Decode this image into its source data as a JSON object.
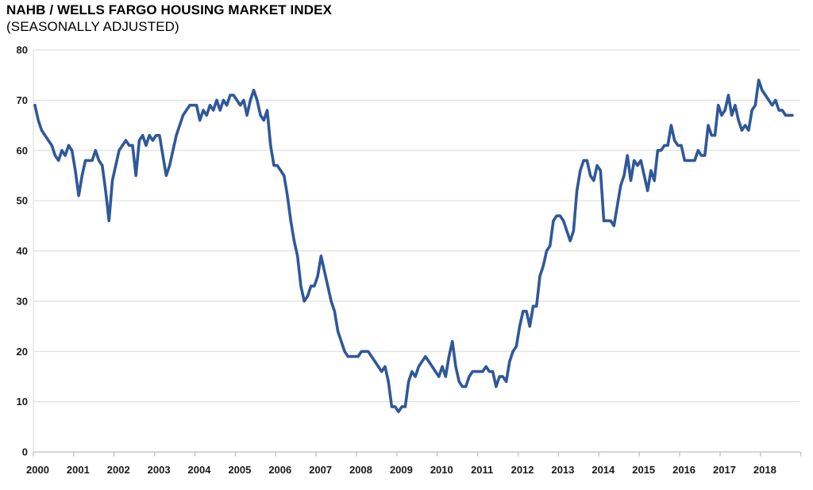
{
  "header": {
    "title": "NAHB / WELLS FARGO HOUSING MARKET INDEX",
    "subtitle": "(SEASONALLY ADJUSTED)"
  },
  "colors": {
    "line": "#2f5899",
    "gridline": "#d9d9d9",
    "axis_line": "#bfbfbf",
    "label_text": "#1a1a1a",
    "background": "#ffffff"
  },
  "chart_data": {
    "type": "line",
    "title": "NAHB / WELLS FARGO HOUSING MARKET INDEX",
    "subtitle": "(SEASONALLY ADJUSTED)",
    "xlabel": "",
    "ylabel": "",
    "ylim": [
      0,
      80
    ],
    "y_ticks": [
      0,
      10,
      20,
      30,
      40,
      50,
      60,
      70,
      80
    ],
    "x_tick_labels": [
      "2000",
      "2001",
      "2002",
      "2003",
      "2004",
      "2005",
      "2006",
      "2007",
      "2008",
      "2009",
      "2010",
      "2011",
      "2012",
      "2013",
      "2014",
      "2015",
      "2016",
      "2017",
      "2018"
    ],
    "x_start_month": "2000-01",
    "x_end_month": "2018-10",
    "grid": "horizontal",
    "legend_position": "none",
    "series": [
      {
        "name": "Housing Market Index (seasonally adjusted)",
        "color": "#2f5899",
        "values": [
          69,
          66,
          64,
          63,
          62,
          61,
          59,
          58,
          60,
          59,
          61,
          60,
          56,
          51,
          55,
          58,
          58,
          58,
          60,
          58,
          57,
          52,
          46,
          54,
          57,
          60,
          61,
          62,
          61,
          61,
          55,
          62,
          63,
          61,
          63,
          62,
          63,
          63,
          59,
          55,
          57,
          60,
          63,
          65,
          67,
          68,
          69,
          69,
          69,
          66,
          68,
          67,
          69,
          68,
          70,
          68,
          70,
          69,
          71,
          71,
          70,
          69,
          70,
          67,
          70,
          72,
          70,
          67,
          66,
          68,
          61,
          57,
          57,
          56,
          55,
          51,
          46,
          42,
          39,
          33,
          30,
          31,
          33,
          33,
          35,
          39,
          36,
          33,
          30,
          28,
          24,
          22,
          20,
          19,
          19,
          19,
          19,
          20,
          20,
          20,
          19,
          18,
          17,
          16,
          17,
          14,
          9,
          9,
          8,
          9,
          9,
          14,
          16,
          15,
          17,
          18,
          19,
          18,
          17,
          16,
          15,
          17,
          15,
          19,
          22,
          17,
          14,
          13,
          13,
          15,
          16,
          16,
          16,
          16,
          17,
          16,
          16,
          13,
          15,
          15,
          14,
          18,
          20,
          21,
          25,
          28,
          28,
          25,
          29,
          29,
          35,
          37,
          40,
          41,
          46,
          47,
          47,
          46,
          44,
          42,
          44,
          52,
          56,
          58,
          58,
          55,
          54,
          57,
          56,
          46,
          46,
          46,
          45,
          49,
          53,
          55,
          59,
          54,
          58,
          57,
          58,
          55,
          52,
          56,
          54,
          60,
          60,
          61,
          61,
          65,
          62,
          61,
          61,
          58,
          58,
          58,
          58,
          60,
          59,
          59,
          65,
          63,
          63,
          69,
          67,
          68,
          71,
          67,
          69,
          66,
          64,
          65,
          64,
          68,
          69,
          74,
          72,
          71,
          70,
          69,
          70,
          68,
          68,
          67,
          67,
          67
        ]
      }
    ]
  }
}
